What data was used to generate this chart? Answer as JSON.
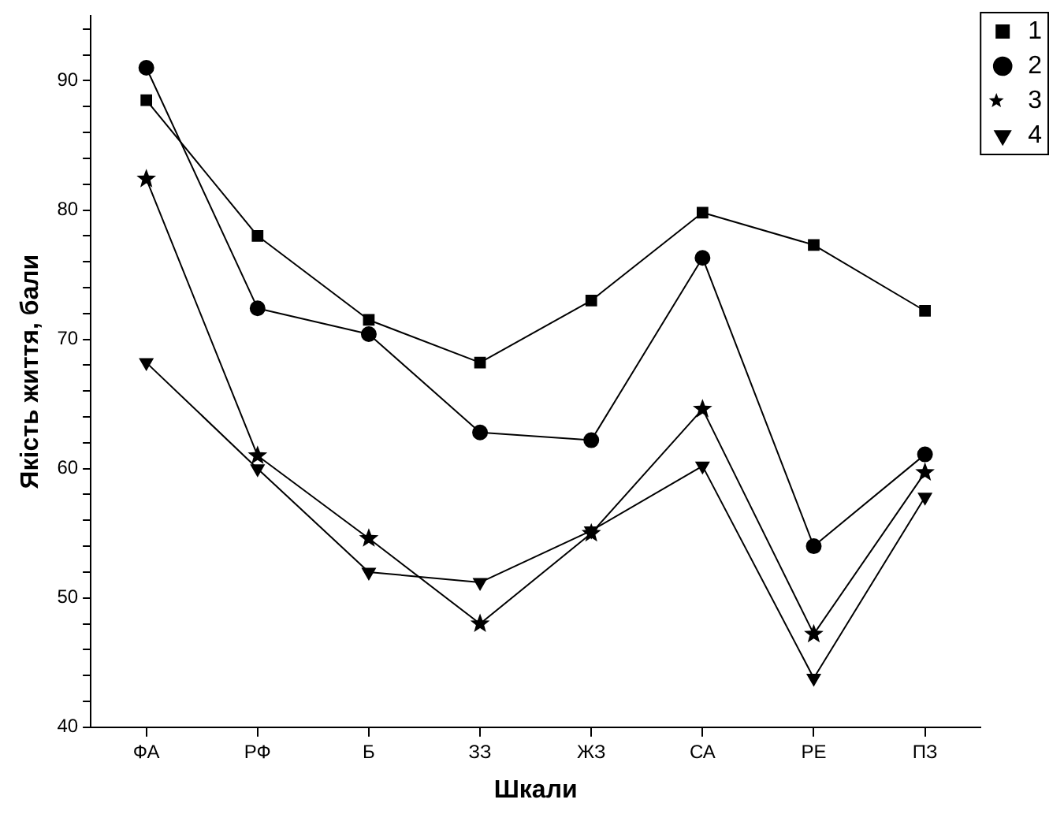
{
  "chart_data": {
    "type": "line",
    "xlabel": "Шкали",
    "ylabel": "Якість життя, бали",
    "categories": [
      "ФА",
      "РФ",
      "Б",
      "ЗЗ",
      "ЖЗ",
      "СА",
      "РЕ",
      "ПЗ"
    ],
    "ylim": [
      40,
      95
    ],
    "yticks": [
      40,
      {
        "value": 42,
        "label": null
      },
      {
        "value": 44,
        "label": null
      },
      {
        "value": 46,
        "label": null
      },
      {
        "value": 48,
        "label": null
      },
      50,
      {
        "value": 52,
        "label": null
      },
      {
        "value": 54,
        "label": null
      },
      {
        "value": 56,
        "label": null
      },
      {
        "value": 58,
        "label": null
      },
      60,
      {
        "value": 62,
        "label": null
      },
      {
        "value": 64,
        "label": null
      },
      {
        "value": 66,
        "label": null
      },
      {
        "value": 68,
        "label": null
      },
      70,
      {
        "value": 72,
        "label": null
      },
      {
        "value": 74,
        "label": null
      },
      {
        "value": 76,
        "label": null
      },
      {
        "value": 78,
        "label": null
      },
      80,
      {
        "value": 82,
        "label": null
      },
      {
        "value": 84,
        "label": null
      },
      {
        "value": 86,
        "label": null
      },
      {
        "value": 88,
        "label": null
      },
      90,
      {
        "value": 92,
        "label": null
      },
      {
        "value": 94,
        "label": null
      }
    ],
    "grid": false,
    "legend": "top right",
    "line_style": "solid",
    "series": [
      {
        "name": "1",
        "color": "#000000",
        "marker": "square",
        "values": [
          88.5,
          78,
          71.5,
          68.2,
          73,
          79.8,
          77.3,
          72.2
        ]
      },
      {
        "name": "2",
        "color": "#000000",
        "marker": "circle",
        "values": [
          91,
          72.4,
          70.4,
          62.8,
          62.2,
          76.3,
          54,
          61.1
        ]
      },
      {
        "name": "3",
        "color": "#000000",
        "marker": "star",
        "values": [
          82.4,
          61,
          54.6,
          48,
          55,
          64.6,
          47.2,
          59.7
        ]
      },
      {
        "name": "4",
        "color": "#000000",
        "marker": "triangle-down",
        "values": [
          68.2,
          60,
          52,
          51.2,
          55.2,
          60.2,
          43.8,
          57.8
        ]
      }
    ]
  }
}
